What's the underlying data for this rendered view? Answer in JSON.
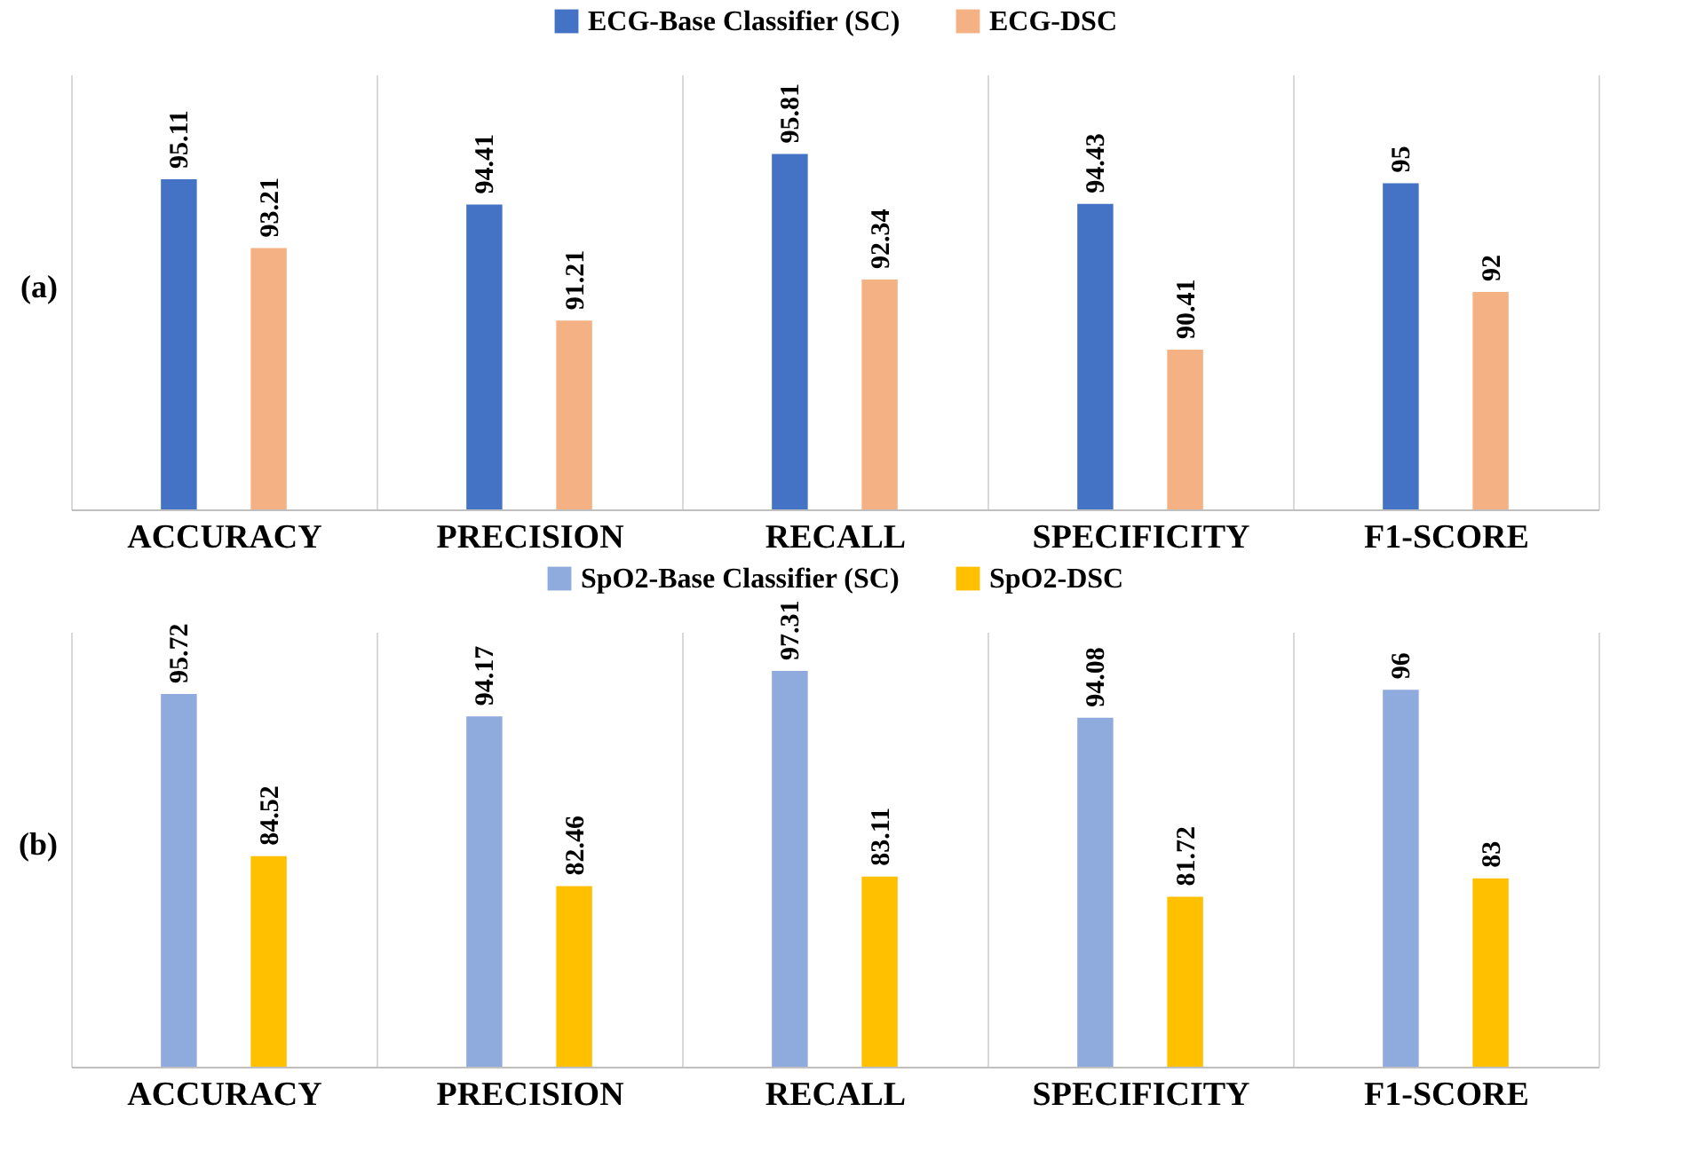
{
  "chart_data": [
    {
      "type": "bar",
      "categories": [
        "ACCURACY",
        "PRECISION",
        "RECALL",
        "SPECIFICITY",
        "F1-SCORE"
      ],
      "series": [
        {
          "name": "ECG-Base Classifier (SC)",
          "color": "#4472c4",
          "values": [
            95.11,
            94.41,
            95.81,
            94.43,
            95
          ]
        },
        {
          "name": "ECG-DSC",
          "color": "#f4b183",
          "values": [
            93.21,
            91.21,
            92.34,
            90.41,
            92
          ]
        }
      ],
      "ylim": [
        86,
        98
      ],
      "data_labels": true,
      "legend": "top",
      "grid": "x",
      "annotations": [
        "(a)"
      ]
    },
    {
      "type": "bar",
      "categories": [
        "ACCURACY",
        "PRECISION",
        "RECALL",
        "SPECIFICITY",
        "F1-SCORE"
      ],
      "series": [
        {
          "name": "SpO2-Base Classifier (SC)",
          "color": "#8faadc",
          "values": [
            95.72,
            94.17,
            97.31,
            94.08,
            96
          ]
        },
        {
          "name": "SpO2-DSC",
          "color": "#ffc000",
          "values": [
            84.52,
            82.46,
            83.11,
            81.72,
            83
          ]
        }
      ],
      "ylim": [
        70,
        100
      ],
      "data_labels": true,
      "legend": "top",
      "grid": "x",
      "annotations": [
        "(b)"
      ]
    }
  ]
}
